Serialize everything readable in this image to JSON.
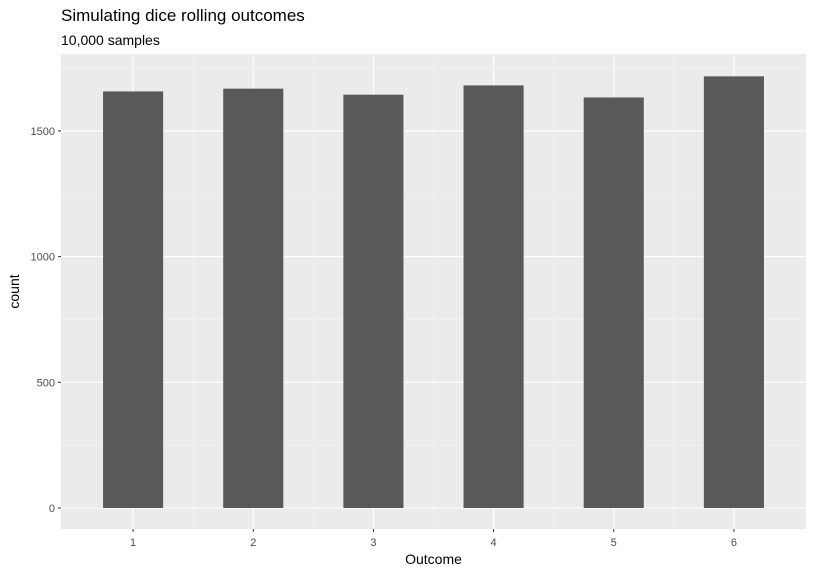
{
  "chart_data": {
    "type": "bar",
    "title": "Simulating dice rolling outcomes",
    "subtitle": "10,000 samples",
    "xlabel": "Outcome",
    "ylabel": "count",
    "categories": [
      "1",
      "2",
      "3",
      "4",
      "5",
      "6"
    ],
    "values": [
      1657,
      1668,
      1644,
      1681,
      1633,
      1717
    ],
    "ylim": [
      0,
      1800
    ],
    "yticks": [
      0,
      500,
      1000,
      1500
    ],
    "yminor": [
      250,
      750,
      1250,
      1750
    ],
    "grid": true,
    "colors": {
      "bar": "#595959",
      "panel": "#ebebeb",
      "grid_major": "#ffffff",
      "grid_minor": "#f5f5f5",
      "tick_text": "#4d4d4d",
      "tick_mark": "#333333"
    }
  }
}
